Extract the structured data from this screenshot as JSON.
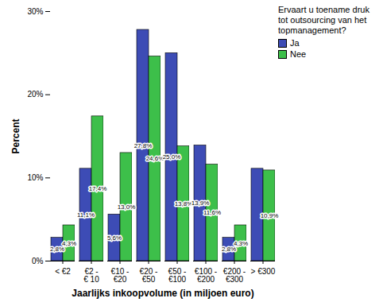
{
  "chart_data": {
    "type": "bar",
    "x_label": "Jaarlijks inkoopvolume (in miljoen euro)",
    "y_label": "Percent",
    "legend_title": "Ervaart u toename druk tot outsourcing van het topmanagement?",
    "categories": [
      "< €2",
      "€2 - € 10",
      "€10 - €20",
      "€20 - €50",
      "€50 - €100",
      "€100 - €200",
      "€200 - €300",
      "> €300"
    ],
    "series": [
      {
        "name": "Ja",
        "color": "#3d4cb5",
        "values": [
          2.8,
          11.1,
          5.6,
          27.8,
          25.0,
          13.9,
          2.8,
          11.1
        ],
        "value_labels": [
          "2,8%",
          "11,1%",
          "5,6%",
          "27,8%",
          "25,0%",
          "13,9%",
          "2,8%",
          null
        ]
      },
      {
        "name": "Nee",
        "color": "#3dbf4a",
        "values": [
          4.3,
          17.4,
          13.0,
          24.6,
          13.8,
          11.6,
          4.3,
          10.9
        ],
        "value_labels": [
          "4,3%",
          "17,4%",
          "13,0%",
          "24,6%",
          "13,8%",
          "11,6%",
          "4,3%",
          "10,9%"
        ]
      }
    ],
    "ylim": [
      0,
      30
    ],
    "yticks": [
      {
        "value": 0,
        "label": "0%"
      },
      {
        "value": 10,
        "label": "10%"
      },
      {
        "value": 20,
        "label": "20%"
      },
      {
        "value": 30,
        "label": "30%"
      }
    ],
    "grid": false,
    "legend": "right",
    "data_labels": true
  }
}
